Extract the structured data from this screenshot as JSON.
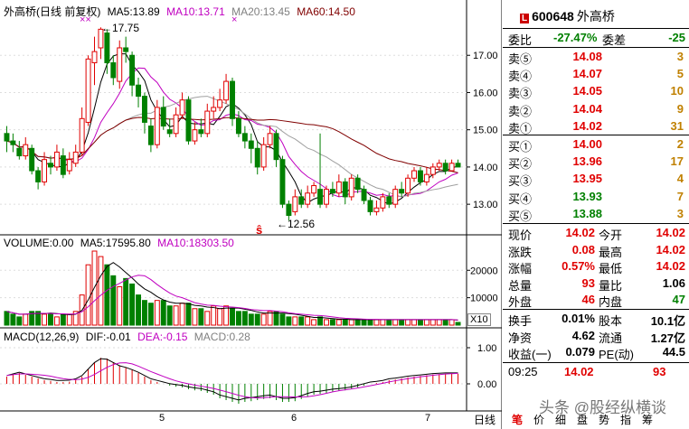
{
  "stock": {
    "name": "外高桥",
    "code": "600648",
    "badge": "L"
  },
  "kline_header": {
    "title": "外高桥(日线 前复权)",
    "ma5": "MA5:13.89",
    "ma10": "MA10:13.71",
    "ma20": "MA20:13.45",
    "ma60": "MA60:14.50"
  },
  "annotations": {
    "high": "17.75",
    "low": "12.56",
    "xx": "××",
    "x": "×",
    "s_mark": "ŝ"
  },
  "volume_header": {
    "title": "VOLUME:0.00",
    "ma5": "MA5:17595.80",
    "ma10": "MA10:18303.50"
  },
  "macd_header": {
    "title": "MACD(12,26,9)",
    "dif": "DIF:-0.01",
    "dea": "DEA:-0.15",
    "macd": "MACD:0.28"
  },
  "x10": "X10",
  "price_axis": [
    "17.00",
    "16.00",
    "15.00",
    "14.00",
    "13.00"
  ],
  "volume_axis": [
    "20000",
    "10000"
  ],
  "macd_axis": [
    "1.00",
    "0.00"
  ],
  "date_labels": [
    "5",
    "6",
    "7"
  ],
  "period_button": "日线",
  "order_book": {
    "weibi_label": "委比",
    "weibi_value": "-27.47%",
    "weicha_label": "委差",
    "weicha_value": "-25",
    "sells": [
      {
        "label": "卖⑤",
        "price": "14.08",
        "vol": "3"
      },
      {
        "label": "卖④",
        "price": "14.07",
        "vol": "5"
      },
      {
        "label": "卖③",
        "price": "14.05",
        "vol": "10"
      },
      {
        "label": "卖②",
        "price": "14.04",
        "vol": "9"
      },
      {
        "label": "卖①",
        "price": "14.02",
        "vol": "31"
      }
    ],
    "buys": [
      {
        "label": "买①",
        "price": "14.00",
        "vol": "2"
      },
      {
        "label": "买②",
        "price": "13.96",
        "vol": "17"
      },
      {
        "label": "买③",
        "price": "13.95",
        "vol": "4"
      },
      {
        "label": "买④",
        "price": "13.93",
        "vol": "7"
      },
      {
        "label": "买⑤",
        "price": "13.88",
        "vol": "3"
      }
    ]
  },
  "stats_left": [
    {
      "label": "现价",
      "value": "14.02"
    },
    {
      "label": "涨跌",
      "value": "0.08"
    },
    {
      "label": "涨幅",
      "value": "0.57%"
    },
    {
      "label": "总量",
      "value": "93"
    },
    {
      "label": "外盘",
      "value": "46"
    }
  ],
  "stats_right": [
    {
      "label": "今开",
      "value": "14.02"
    },
    {
      "label": "最高",
      "value": "14.02"
    },
    {
      "label": "最低",
      "value": "14.02"
    },
    {
      "label": "量比",
      "value": "1.06"
    },
    {
      "label": "内盘",
      "value": "47"
    }
  ],
  "stats2_left": [
    {
      "label": "换手",
      "value": "0.01%"
    },
    {
      "label": "净资",
      "value": "4.62"
    },
    {
      "label": "收益(一)",
      "value": "0.079"
    }
  ],
  "stats2_right": [
    {
      "label": "股本",
      "value": "10.1亿"
    },
    {
      "label": "流通",
      "value": "1.27亿"
    },
    {
      "label": "PE(动)",
      "value": "44.5"
    }
  ],
  "tick": {
    "time": "09:25",
    "price": "14.02",
    "vol": "93"
  },
  "tabs": [
    "笔",
    "价",
    "细",
    "盘",
    "势",
    "指",
    "筹"
  ],
  "watermark": "头条 @股经纵横谈",
  "colors": {
    "up": "#e00000",
    "down": "#008000",
    "ma5": "#000000",
    "ma10": "#c000c0",
    "ma20": "#a0a0a0",
    "ma60": "#800000"
  },
  "chart_data": {
    "type": "candlestick",
    "ylim": [
      12.3,
      18.0
    ],
    "candles": [
      [
        14.9,
        14.7,
        15.1,
        14.4
      ],
      [
        14.7,
        14.6,
        14.9,
        14.4
      ],
      [
        14.5,
        14.3,
        14.7,
        14.2
      ],
      [
        14.3,
        14.6,
        14.8,
        14.2
      ],
      [
        14.5,
        13.9,
        14.6,
        13.8
      ],
      [
        13.9,
        13.6,
        14.0,
        13.4
      ],
      [
        13.6,
        14.2,
        14.4,
        13.5
      ],
      [
        14.1,
        14.0,
        14.3,
        13.8
      ],
      [
        14.0,
        14.4,
        14.6,
        13.9
      ],
      [
        14.3,
        13.8,
        14.5,
        13.7
      ],
      [
        13.9,
        14.2,
        14.4,
        13.8
      ],
      [
        14.1,
        14.4,
        14.6,
        14.0
      ],
      [
        14.4,
        15.3,
        15.6,
        14.3
      ],
      [
        15.2,
        16.9,
        17.0,
        15.1
      ],
      [
        16.8,
        17.1,
        17.5,
        16.2
      ],
      [
        17.2,
        17.7,
        17.75,
        16.9
      ],
      [
        17.6,
        16.8,
        17.7,
        16.5
      ],
      [
        16.8,
        16.4,
        17.0,
        16.2
      ],
      [
        16.3,
        17.2,
        17.4,
        16.1
      ],
      [
        17.2,
        17.1,
        17.5,
        16.8
      ],
      [
        17.0,
        16.2,
        17.1,
        15.9
      ],
      [
        16.2,
        15.9,
        16.4,
        15.6
      ],
      [
        15.9,
        15.2,
        16.0,
        14.9
      ],
      [
        15.1,
        14.6,
        15.3,
        14.4
      ],
      [
        14.6,
        15.6,
        15.8,
        14.5
      ],
      [
        15.6,
        15.1,
        15.9,
        15.0
      ],
      [
        15.0,
        14.9,
        15.3,
        14.8
      ],
      [
        14.9,
        15.4,
        15.6,
        14.8
      ],
      [
        15.4,
        15.8,
        16.0,
        15.3
      ],
      [
        15.8,
        14.7,
        15.9,
        14.6
      ],
      [
        14.7,
        15.0,
        15.2,
        14.6
      ],
      [
        15.0,
        14.9,
        15.3,
        14.8
      ],
      [
        14.9,
        15.5,
        15.7,
        14.8
      ],
      [
        15.5,
        15.6,
        15.9,
        15.3
      ],
      [
        15.6,
        15.8,
        16.1,
        15.5
      ],
      [
        15.8,
        16.3,
        16.5,
        15.7
      ],
      [
        16.3,
        15.3,
        16.4,
        15.1
      ],
      [
        15.3,
        14.9,
        15.5,
        14.8
      ],
      [
        14.9,
        14.7,
        15.1,
        14.5
      ],
      [
        14.7,
        14.5,
        14.9,
        14.1
      ],
      [
        14.5,
        14.0,
        14.7,
        13.8
      ],
      [
        14.0,
        14.6,
        14.8,
        13.9
      ],
      [
        14.6,
        14.9,
        15.1,
        14.5
      ],
      [
        14.9,
        14.2,
        15.0,
        14.0
      ],
      [
        14.2,
        13.0,
        14.3,
        12.9
      ],
      [
        13.0,
        12.7,
        13.1,
        12.56
      ],
      [
        12.8,
        13.2,
        13.4,
        12.7
      ],
      [
        13.2,
        13.0,
        13.4,
        12.9
      ],
      [
        13.0,
        13.3,
        13.5,
        12.9
      ],
      [
        13.3,
        13.5,
        13.6,
        13.2
      ],
      [
        13.4,
        13.0,
        14.9,
        12.9
      ],
      [
        13.0,
        13.4,
        13.5,
        12.9
      ],
      [
        13.4,
        13.3,
        13.6,
        13.2
      ],
      [
        13.3,
        13.6,
        13.8,
        13.2
      ],
      [
        13.6,
        13.2,
        13.7,
        13.0
      ],
      [
        13.2,
        13.7,
        13.8,
        13.1
      ],
      [
        13.7,
        13.4,
        13.8,
        13.3
      ],
      [
        13.4,
        13.1,
        13.5,
        13.0
      ],
      [
        13.1,
        12.8,
        13.2,
        12.7
      ],
      [
        12.8,
        12.9,
        13.1,
        12.7
      ],
      [
        12.9,
        13.2,
        13.3,
        12.8
      ],
      [
        13.2,
        13.0,
        13.3,
        12.9
      ],
      [
        13.0,
        13.4,
        13.5,
        12.9
      ],
      [
        13.4,
        13.3,
        13.6,
        13.2
      ],
      [
        13.3,
        13.7,
        13.8,
        13.2
      ],
      [
        13.7,
        13.9,
        14.0,
        13.6
      ],
      [
        13.9,
        13.6,
        14.0,
        13.5
      ],
      [
        13.6,
        13.8,
        14.0,
        13.5
      ],
      [
        13.8,
        14.0,
        14.1,
        13.7
      ],
      [
        14.0,
        14.1,
        14.2,
        13.9
      ],
      [
        14.1,
        13.9,
        14.2,
        13.8
      ],
      [
        13.9,
        14.1,
        14.2,
        13.9
      ],
      [
        14.1,
        14.0,
        14.2,
        14.0
      ]
    ],
    "volume": [
      5,
      4,
      3,
      4,
      5,
      5,
      4,
      4,
      3,
      4,
      4,
      5,
      11,
      22,
      27,
      25,
      22,
      18,
      14,
      17,
      15,
      11,
      9,
      8,
      9,
      9,
      7,
      7,
      8,
      8,
      6,
      6,
      5,
      7,
      6,
      7,
      6,
      5,
      5,
      4,
      4,
      4,
      5,
      5,
      4,
      3,
      3,
      3,
      3,
      2,
      3,
      2,
      2,
      2,
      2,
      2,
      2,
      2,
      2,
      2,
      2,
      2,
      2,
      2,
      2,
      2,
      2,
      2,
      2,
      2,
      2,
      2,
      1
    ],
    "volume_ylim": [
      0,
      27000
    ],
    "macd_bars": [
      0.2,
      0.25,
      0.3,
      0.25,
      0.2,
      0.15,
      0.1,
      0.08,
      0.05,
      0.05,
      0.06,
      0.1,
      0.2,
      0.4,
      0.6,
      0.72,
      0.7,
      0.6,
      0.5,
      0.45,
      0.38,
      0.3,
      0.2,
      0.1,
      0.05,
      0.0,
      -0.05,
      -0.08,
      -0.1,
      -0.15,
      -0.18,
      -0.2,
      -0.25,
      -0.3,
      -0.4,
      -0.45,
      -0.5,
      -0.55,
      -0.5,
      -0.48,
      -0.45,
      -0.42,
      -0.4,
      -0.45,
      -0.5,
      -0.5,
      -0.48,
      -0.42,
      -0.35,
      -0.3,
      -0.28,
      -0.25,
      -0.22,
      -0.2,
      -0.18,
      -0.15,
      -0.1,
      -0.05,
      0.0,
      0.02,
      0.05,
      0.1,
      0.12,
      0.15,
      0.18,
      0.2,
      0.22,
      0.24,
      0.26,
      0.27,
      0.28,
      0.28,
      0.28
    ]
  }
}
